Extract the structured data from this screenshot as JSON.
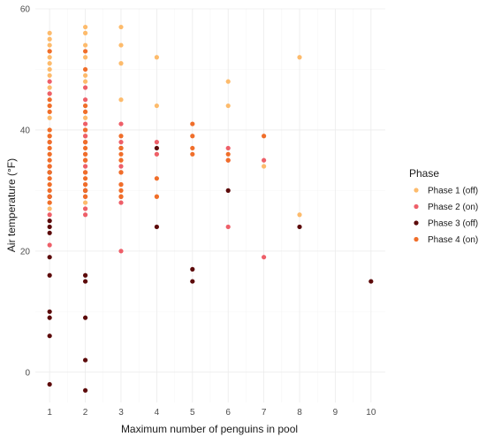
{
  "chart_data": {
    "type": "scatter",
    "xlabel": "Maximum number of penguins in pool",
    "ylabel": "Air temperature (°F)",
    "xlim": [
      0.6,
      10.4
    ],
    "ylim": [
      -5,
      60
    ],
    "x_ticks": [
      1,
      2,
      3,
      4,
      5,
      6,
      7,
      8,
      9,
      10
    ],
    "y_ticks": [
      0,
      20,
      40,
      60
    ],
    "grid": true,
    "legend": {
      "title": "Phase",
      "placement": "right"
    },
    "series": [
      {
        "name": "Phase 1 (off)",
        "color": "#fdbb6c",
        "points": [
          [
            1,
            56
          ],
          [
            1,
            55
          ],
          [
            1,
            54
          ],
          [
            1,
            53
          ],
          [
            1,
            52
          ],
          [
            1,
            51
          ],
          [
            1,
            50
          ],
          [
            1,
            49
          ],
          [
            1,
            47
          ],
          [
            1,
            46
          ],
          [
            1,
            44
          ],
          [
            1,
            42
          ],
          [
            1,
            40
          ],
          [
            1,
            39
          ],
          [
            1,
            36
          ],
          [
            1,
            33
          ],
          [
            1,
            31
          ],
          [
            1,
            28
          ],
          [
            1,
            27
          ],
          [
            2,
            57
          ],
          [
            2,
            56
          ],
          [
            2,
            54
          ],
          [
            2,
            52
          ],
          [
            2,
            49
          ],
          [
            2,
            48
          ],
          [
            2,
            44
          ],
          [
            2,
            42
          ],
          [
            2,
            39
          ],
          [
            2,
            35
          ],
          [
            2,
            33
          ],
          [
            2,
            31
          ],
          [
            2,
            28
          ],
          [
            2,
            27
          ],
          [
            3,
            57
          ],
          [
            3,
            54
          ],
          [
            3,
            51
          ],
          [
            3,
            45
          ],
          [
            3,
            37
          ],
          [
            3,
            35
          ],
          [
            3,
            33
          ],
          [
            3,
            31
          ],
          [
            3,
            29
          ],
          [
            4,
            52
          ],
          [
            4,
            44
          ],
          [
            4,
            36
          ],
          [
            4,
            29
          ],
          [
            6,
            48
          ],
          [
            6,
            44
          ],
          [
            7,
            34
          ],
          [
            8,
            52
          ],
          [
            8,
            26
          ]
        ]
      },
      {
        "name": "Phase 2 (on)",
        "color": "#ee5f69",
        "points": [
          [
            1,
            48
          ],
          [
            1,
            46
          ],
          [
            1,
            38
          ],
          [
            1,
            34
          ],
          [
            1,
            29
          ],
          [
            1,
            26
          ],
          [
            1,
            21
          ],
          [
            2,
            47
          ],
          [
            2,
            45
          ],
          [
            2,
            41
          ],
          [
            2,
            40
          ],
          [
            2,
            39
          ],
          [
            2,
            38
          ],
          [
            2,
            36
          ],
          [
            2,
            35
          ],
          [
            2,
            34
          ],
          [
            2,
            33
          ],
          [
            2,
            31
          ],
          [
            2,
            30
          ],
          [
            2,
            29
          ],
          [
            2,
            27
          ],
          [
            2,
            26
          ],
          [
            3,
            41
          ],
          [
            3,
            38
          ],
          [
            3,
            34
          ],
          [
            3,
            33
          ],
          [
            3,
            31
          ],
          [
            3,
            29
          ],
          [
            3,
            28
          ],
          [
            3,
            20
          ],
          [
            4,
            38
          ],
          [
            4,
            36
          ],
          [
            6,
            37
          ],
          [
            6,
            35
          ],
          [
            6,
            24
          ],
          [
            7,
            35
          ],
          [
            7,
            19
          ]
        ]
      },
      {
        "name": "Phase 3 (off)",
        "color": "#5c0a0a",
        "points": [
          [
            1,
            33
          ],
          [
            1,
            29
          ],
          [
            1,
            25
          ],
          [
            1,
            24
          ],
          [
            1,
            23
          ],
          [
            1,
            19
          ],
          [
            1,
            16
          ],
          [
            1,
            10
          ],
          [
            1,
            9
          ],
          [
            1,
            6
          ],
          [
            1,
            -2
          ],
          [
            2,
            30
          ],
          [
            2,
            16
          ],
          [
            2,
            15
          ],
          [
            2,
            9
          ],
          [
            2,
            2
          ],
          [
            2,
            -3
          ],
          [
            3,
            37
          ],
          [
            4,
            37
          ],
          [
            4,
            24
          ],
          [
            5,
            17
          ],
          [
            5,
            15
          ],
          [
            6,
            30
          ],
          [
            8,
            24
          ],
          [
            10,
            15
          ]
        ]
      },
      {
        "name": "Phase 4 (on)",
        "color": "#f06e2a",
        "points": [
          [
            1,
            53
          ],
          [
            1,
            45
          ],
          [
            1,
            44
          ],
          [
            1,
            43
          ],
          [
            1,
            40
          ],
          [
            1,
            39
          ],
          [
            1,
            38
          ],
          [
            1,
            37
          ],
          [
            1,
            36
          ],
          [
            1,
            35
          ],
          [
            1,
            34
          ],
          [
            1,
            33
          ],
          [
            1,
            32
          ],
          [
            1,
            31
          ],
          [
            1,
            30
          ],
          [
            1,
            29
          ],
          [
            1,
            28
          ],
          [
            2,
            53
          ],
          [
            2,
            50
          ],
          [
            2,
            44
          ],
          [
            2,
            43
          ],
          [
            2,
            40
          ],
          [
            2,
            38
          ],
          [
            2,
            37
          ],
          [
            2,
            36
          ],
          [
            2,
            35
          ],
          [
            2,
            33
          ],
          [
            2,
            32
          ],
          [
            2,
            31
          ],
          [
            2,
            30
          ],
          [
            2,
            29
          ],
          [
            3,
            39
          ],
          [
            3,
            37
          ],
          [
            3,
            36
          ],
          [
            3,
            35
          ],
          [
            3,
            33
          ],
          [
            3,
            31
          ],
          [
            3,
            30
          ],
          [
            3,
            29
          ],
          [
            4,
            32
          ],
          [
            4,
            29
          ],
          [
            5,
            41
          ],
          [
            5,
            39
          ],
          [
            5,
            37
          ],
          [
            5,
            36
          ],
          [
            6,
            36
          ],
          [
            6,
            35
          ],
          [
            7,
            39
          ]
        ]
      }
    ]
  }
}
